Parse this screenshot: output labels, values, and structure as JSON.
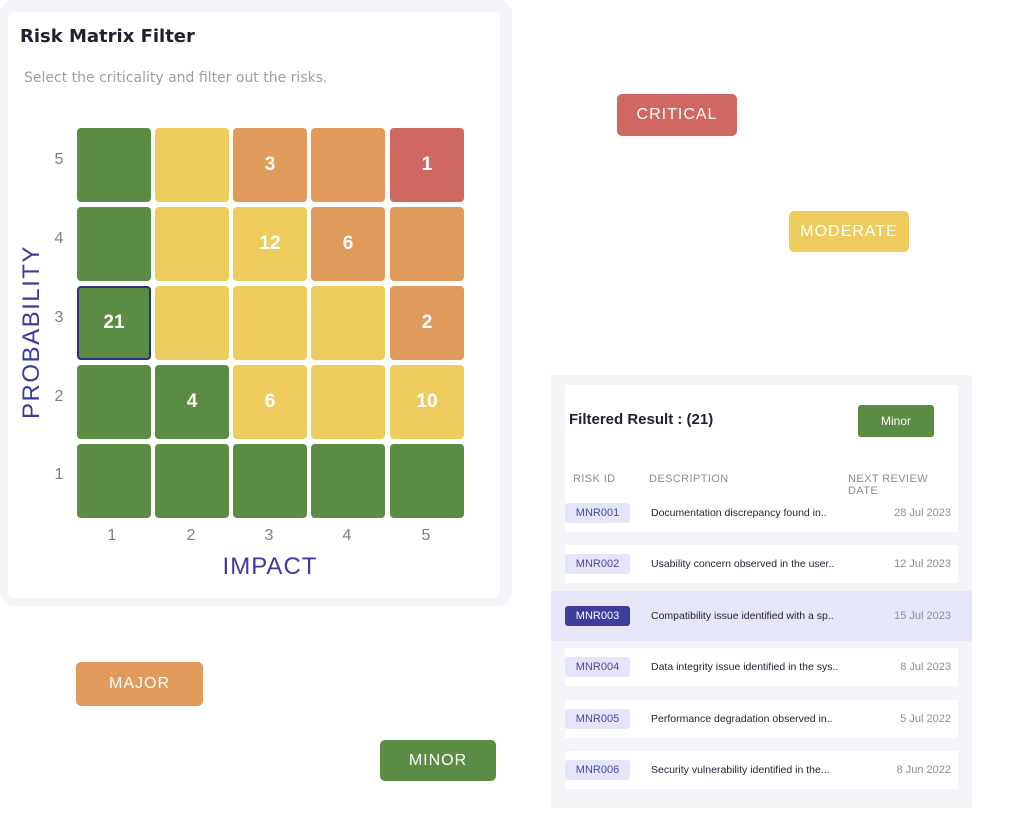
{
  "matrix": {
    "title": "Risk Matrix Filter",
    "subtitle": "Select the criticality and filter out the risks.",
    "y_axis_label": "PROBABILITY",
    "x_axis_label": "IMPACT",
    "y_ticks": [
      "5",
      "4",
      "3",
      "2",
      "1"
    ],
    "x_ticks": [
      "1",
      "2",
      "3",
      "4",
      "5"
    ],
    "colors": {
      "minor": "#5b8c43",
      "moderate": "#edcb5d",
      "major": "#e09a5c",
      "critical": "#cf6860"
    },
    "rows": [
      {
        "probability": "5",
        "cells": [
          {
            "level": "minor",
            "count": ""
          },
          {
            "level": "moderate",
            "count": ""
          },
          {
            "level": "major",
            "count": "3"
          },
          {
            "level": "major",
            "count": ""
          },
          {
            "level": "critical",
            "count": "1"
          }
        ]
      },
      {
        "probability": "4",
        "cells": [
          {
            "level": "minor",
            "count": ""
          },
          {
            "level": "moderate",
            "count": ""
          },
          {
            "level": "moderate",
            "count": "12"
          },
          {
            "level": "major",
            "count": "6"
          },
          {
            "level": "major",
            "count": ""
          }
        ]
      },
      {
        "probability": "3",
        "cells": [
          {
            "level": "minor",
            "count": "21",
            "selected": true
          },
          {
            "level": "moderate",
            "count": ""
          },
          {
            "level": "moderate",
            "count": ""
          },
          {
            "level": "moderate",
            "count": ""
          },
          {
            "level": "major",
            "count": "2"
          }
        ]
      },
      {
        "probability": "2",
        "cells": [
          {
            "level": "minor",
            "count": ""
          },
          {
            "level": "minor",
            "count": "4"
          },
          {
            "level": "moderate",
            "count": "6"
          },
          {
            "level": "moderate",
            "count": ""
          },
          {
            "level": "moderate",
            "count": "10"
          }
        ]
      },
      {
        "probability": "1",
        "cells": [
          {
            "level": "minor",
            "count": ""
          },
          {
            "level": "minor",
            "count": ""
          },
          {
            "level": "minor",
            "count": ""
          },
          {
            "level": "minor",
            "count": ""
          },
          {
            "level": "minor",
            "count": ""
          }
        ]
      }
    ]
  },
  "legend": {
    "critical": "CRITICAL",
    "moderate": "MODERATE",
    "major": "MAJOR",
    "minor": "MINOR"
  },
  "result": {
    "title": "Filtered Result : (21)",
    "filter_label": "Minor",
    "columns": {
      "risk_id": "RISK ID",
      "description": "DESCRIPTION",
      "next_review_date": "NEXT REVIEW DATE"
    },
    "rows": [
      {
        "id": "MNR001",
        "description": "Documentation discrepancy found in..",
        "date": "28 Jul 2023",
        "active": false
      },
      {
        "id": "MNR002",
        "description": "Usability concern observed in the user..",
        "date": "12 Jul 2023",
        "active": false
      },
      {
        "id": "MNR003",
        "description": "Compatibility issue identified with a sp..",
        "date": "15 Jul 2023",
        "active": true
      },
      {
        "id": "MNR004",
        "description": "Data integrity issue identified in the sys..",
        "date": "8 Jul 2023",
        "active": false
      },
      {
        "id": "MNR005",
        "description": "Performance degradation observed in..",
        "date": "5 Jul 2022",
        "active": false
      },
      {
        "id": "MNR006",
        "description": "Security vulnerability identified in the...",
        "date": "8 Jun 2022",
        "active": false
      }
    ]
  }
}
